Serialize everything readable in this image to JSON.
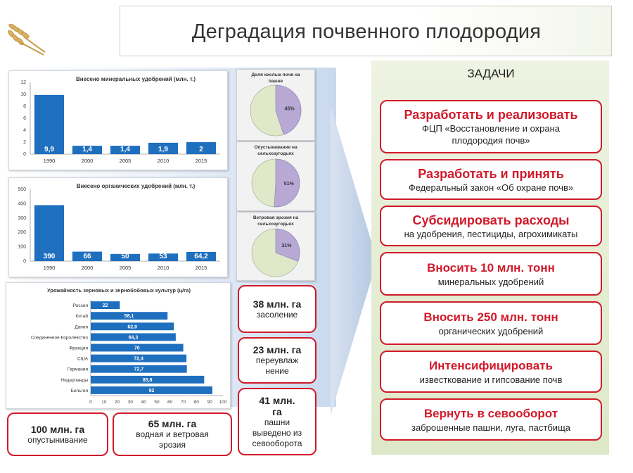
{
  "title": "Деградация почвенного плодородия",
  "colors": {
    "bar": "#1f6fbf",
    "accent": "#d11a2a",
    "pie_main": "#dfe9c9",
    "pie_slice": "#b7a8d4"
  },
  "logo": {
    "icon": "wheat-icon"
  },
  "chart_data": [
    {
      "type": "bar",
      "title": "Внесено минеральных удобрений (млн. т.)",
      "categories": [
        "1990",
        "2000",
        "2005",
        "2010",
        "2015"
      ],
      "values": [
        9.9,
        1.4,
        1.4,
        1.9,
        2
      ],
      "labels": [
        "9,9",
        "1,4",
        "1,4",
        "1,9",
        "2"
      ],
      "ylim": [
        0,
        12
      ],
      "yticks": [
        0,
        2,
        4,
        6,
        8,
        10,
        12
      ],
      "grid": false
    },
    {
      "type": "bar",
      "title": "Внесено органических удобрений (млн. т.)",
      "categories": [
        "1990",
        "2000",
        "2005",
        "2010",
        "2015"
      ],
      "values": [
        390,
        66,
        50,
        53,
        64.2
      ],
      "labels": [
        "390",
        "66",
        "50",
        "53",
        "64,2"
      ],
      "ylim": [
        0,
        500
      ],
      "yticks": [
        0,
        100,
        200,
        300,
        400,
        500
      ],
      "grid": false
    },
    {
      "type": "bar",
      "orientation": "horizontal",
      "title": "Урожайность зерновых и зернобобовых культур (ц/га)",
      "categories": [
        "Россия",
        "Китай",
        "Дания",
        "Соединенное Королевство",
        "Франция",
        "США",
        "Германия",
        "Нидерланды",
        "Бельгия"
      ],
      "values": [
        22,
        58.1,
        62.9,
        64.3,
        70,
        72.4,
        72.7,
        85.8,
        92
      ],
      "labels": [
        "22",
        "58,1",
        "62,9",
        "64,3",
        "70",
        "72,4",
        "72,7",
        "85,8",
        "92"
      ],
      "xlim": [
        0,
        100
      ],
      "xticks": [
        0,
        10,
        20,
        30,
        40,
        50,
        60,
        70,
        80,
        90,
        100
      ],
      "grid": false
    },
    {
      "type": "pie",
      "title": "Доля кислых почв на пашне",
      "values": [
        55,
        45
      ],
      "labels": [
        "",
        "45%"
      ]
    },
    {
      "type": "pie",
      "title": "Опустынивание на сельхозугодьях",
      "values": [
        49,
        51
      ],
      "labels": [
        "",
        "51%"
      ]
    },
    {
      "type": "pie",
      "title": "Ветровая эрозия на сельхозугодьях",
      "values": [
        69,
        31
      ],
      "labels": [
        "",
        "31%"
      ]
    }
  ],
  "stats": {
    "salinization": {
      "value": "38 млн. га",
      "desc": "засоление"
    },
    "waterlogging": {
      "value": "23 млн. га",
      "desc_1": "переувлаж",
      "desc_2": "нение"
    },
    "abandoned": {
      "value_1": "41 млн.",
      "value_2": "га",
      "desc_1": "пашни",
      "desc_2": "выведено из",
      "desc_3": "севооборота"
    },
    "desertification": {
      "value": "100 млн. га",
      "desc": "опустынивание"
    },
    "erosion": {
      "value": "65 млн. га",
      "desc_1": "водная и ветровая",
      "desc_2": "эрозия"
    }
  },
  "tasks": {
    "heading": "ЗАДАЧИ",
    "items": [
      {
        "title": "Разработать и реализовать",
        "desc_1": "ФЦП «Восстановление и охрана",
        "desc_2": "плодородия почв»"
      },
      {
        "title": "Разработать и принять",
        "desc_1": "Федеральный закон «Об охране почв»",
        "desc_2": ""
      },
      {
        "title": "Субсидировать расходы",
        "desc_1": "на удобрения, пестициды, агрохимикаты",
        "desc_2": ""
      },
      {
        "title": "Вносить 10 млн. тонн",
        "desc_1": "минеральных удобрений",
        "desc_2": ""
      },
      {
        "title": "Вносить 250 млн. тонн",
        "desc_1": "органических удобрений",
        "desc_2": ""
      },
      {
        "title": "Интенсифицировать",
        "desc_1": "известкование и гипсование почв",
        "desc_2": ""
      },
      {
        "title": "Вернуть в севооборот",
        "desc_1": "заброшенные пашни, луга, пастбища",
        "desc_2": ""
      }
    ]
  }
}
